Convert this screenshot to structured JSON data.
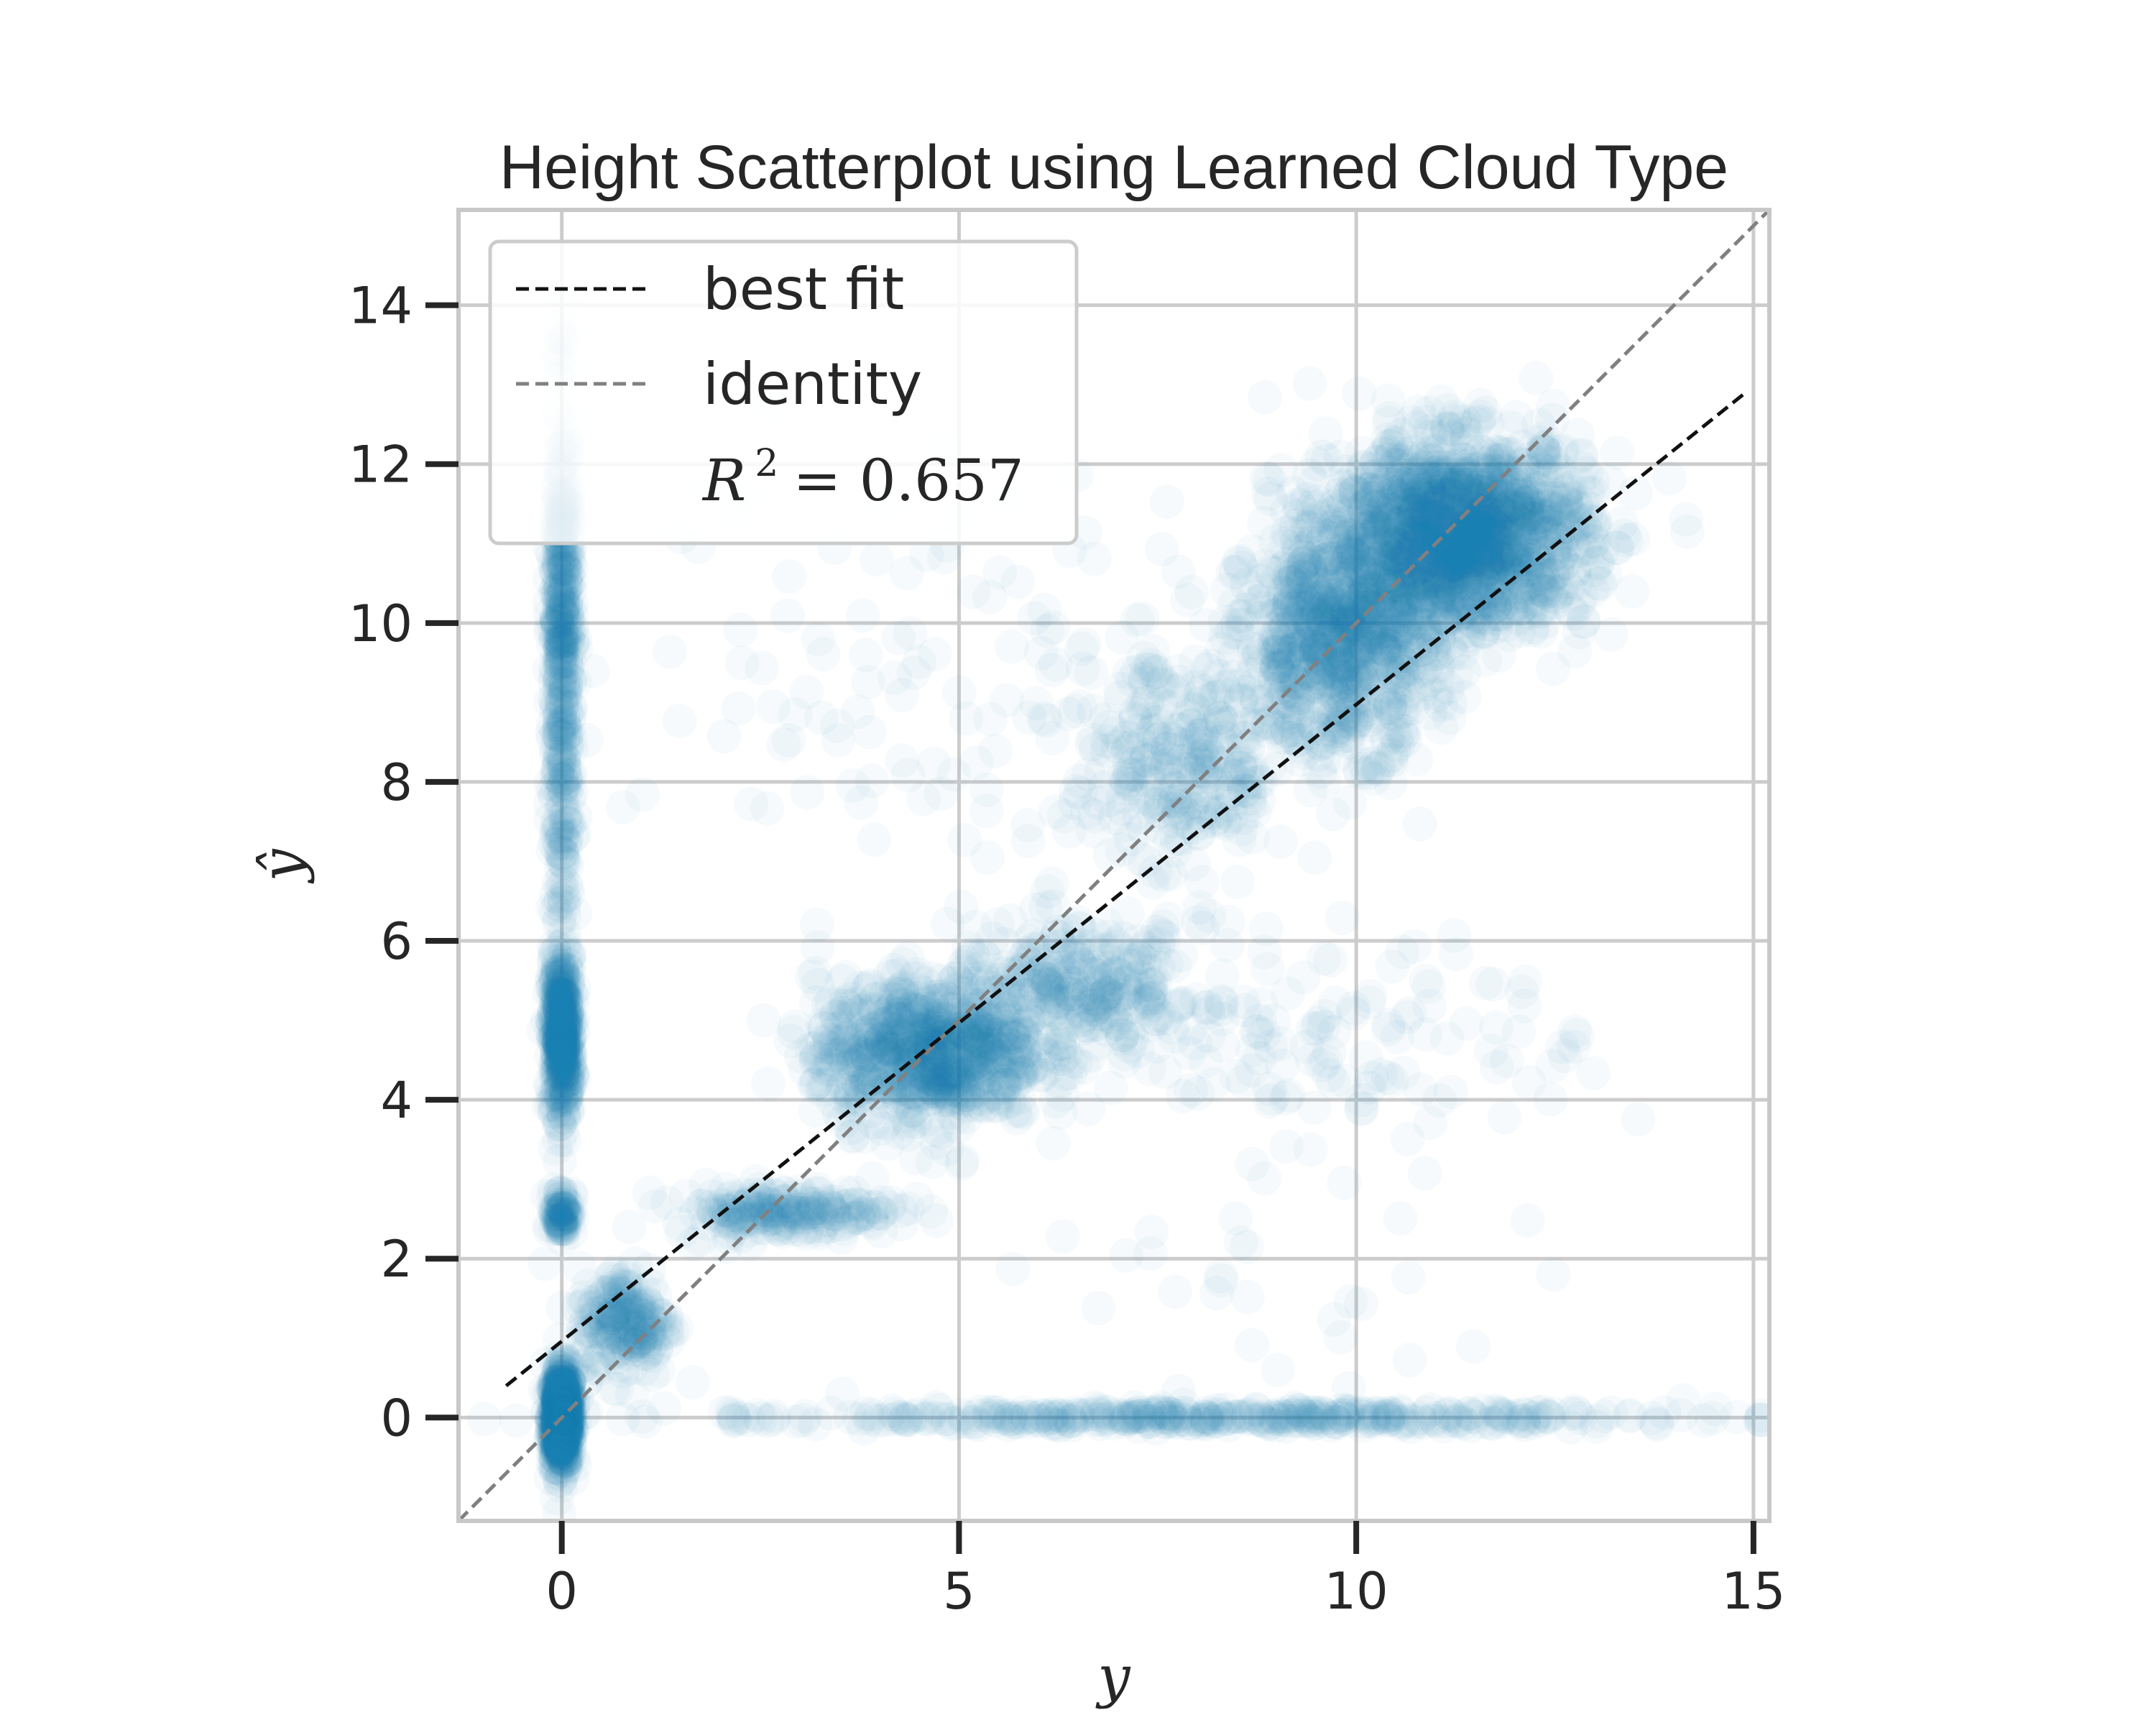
{
  "chart_data": {
    "type": "scatter",
    "title": "Height Scatterplot using Learned Cloud Type",
    "xlabel": "y",
    "ylabel": "ŷ",
    "xlim": [
      -1.3,
      15.2
    ],
    "ylim": [
      -1.3,
      15.2
    ],
    "xticks": [
      0,
      5,
      10,
      15
    ],
    "yticks": [
      0,
      2,
      4,
      6,
      8,
      10,
      12,
      14
    ],
    "grid": true,
    "legend": {
      "placement": "top-left",
      "entries": [
        {
          "label": "best fit",
          "style": "dashed",
          "color": "#111111"
        },
        {
          "label": "identity",
          "style": "dashed",
          "color": "#808080"
        }
      ],
      "r2_label": "R",
      "r2_exp": "2",
      "r2_text": "= 0.657"
    },
    "colors": {
      "points": "#1f77b4",
      "best_fit": "#111111",
      "identity": "#808080",
      "grid": "#cccccc"
    },
    "best_fit_line": {
      "x": [
        -0.7,
        14.9
      ],
      "y": [
        0.4,
        12.9
      ]
    },
    "identity_line": {
      "x": [
        -1.3,
        15.2
      ],
      "y": [
        -1.3,
        15.2
      ]
    },
    "point_alpha": 0.04,
    "point_clusters": [
      {
        "x": 0.0,
        "y": 0.0,
        "sx": 0.06,
        "sy": 0.3,
        "n": 700
      },
      {
        "x": 0.0,
        "y": 4.8,
        "sx": 0.06,
        "sy": 0.5,
        "n": 400
      },
      {
        "x": 0.0,
        "y": 10.2,
        "sx": 0.06,
        "sy": 1.3,
        "n": 300
      },
      {
        "x": 0.0,
        "y": 2.6,
        "sx": 0.06,
        "sy": 0.15,
        "n": 80
      },
      {
        "x": 0.0,
        "y": 8.0,
        "sx": 0.06,
        "sy": 1.6,
        "n": 150
      },
      {
        "x": 0.8,
        "y": 1.2,
        "sx": 0.3,
        "sy": 0.35,
        "n": 200
      },
      {
        "x": 2.8,
        "y": 2.6,
        "sx": 0.7,
        "sy": 0.15,
        "n": 200
      },
      {
        "x": 4.6,
        "y": 4.6,
        "sx": 0.7,
        "sy": 0.45,
        "n": 800
      },
      {
        "x": 6.5,
        "y": 5.4,
        "sx": 0.8,
        "sy": 0.4,
        "n": 300
      },
      {
        "x": 7.8,
        "y": 8.2,
        "sx": 0.7,
        "sy": 0.8,
        "n": 300
      },
      {
        "x": 9.8,
        "y": 9.8,
        "sx": 0.6,
        "sy": 0.7,
        "n": 800
      },
      {
        "x": 11.3,
        "y": 11.1,
        "sx": 0.8,
        "sy": 0.6,
        "n": 1600
      },
      {
        "x": 8.0,
        "y": 0.0,
        "sx": 3.2,
        "sy": 0.05,
        "n": 400
      },
      {
        "x": 5.0,
        "y": 9.5,
        "sx": 2.0,
        "sy": 1.4,
        "n": 120
      },
      {
        "x": 10.0,
        "y": 4.8,
        "sx": 1.5,
        "sy": 0.6,
        "n": 120
      },
      {
        "x": 9.0,
        "y": 2.0,
        "sx": 2.5,
        "sy": 1.0,
        "n": 40
      }
    ]
  }
}
